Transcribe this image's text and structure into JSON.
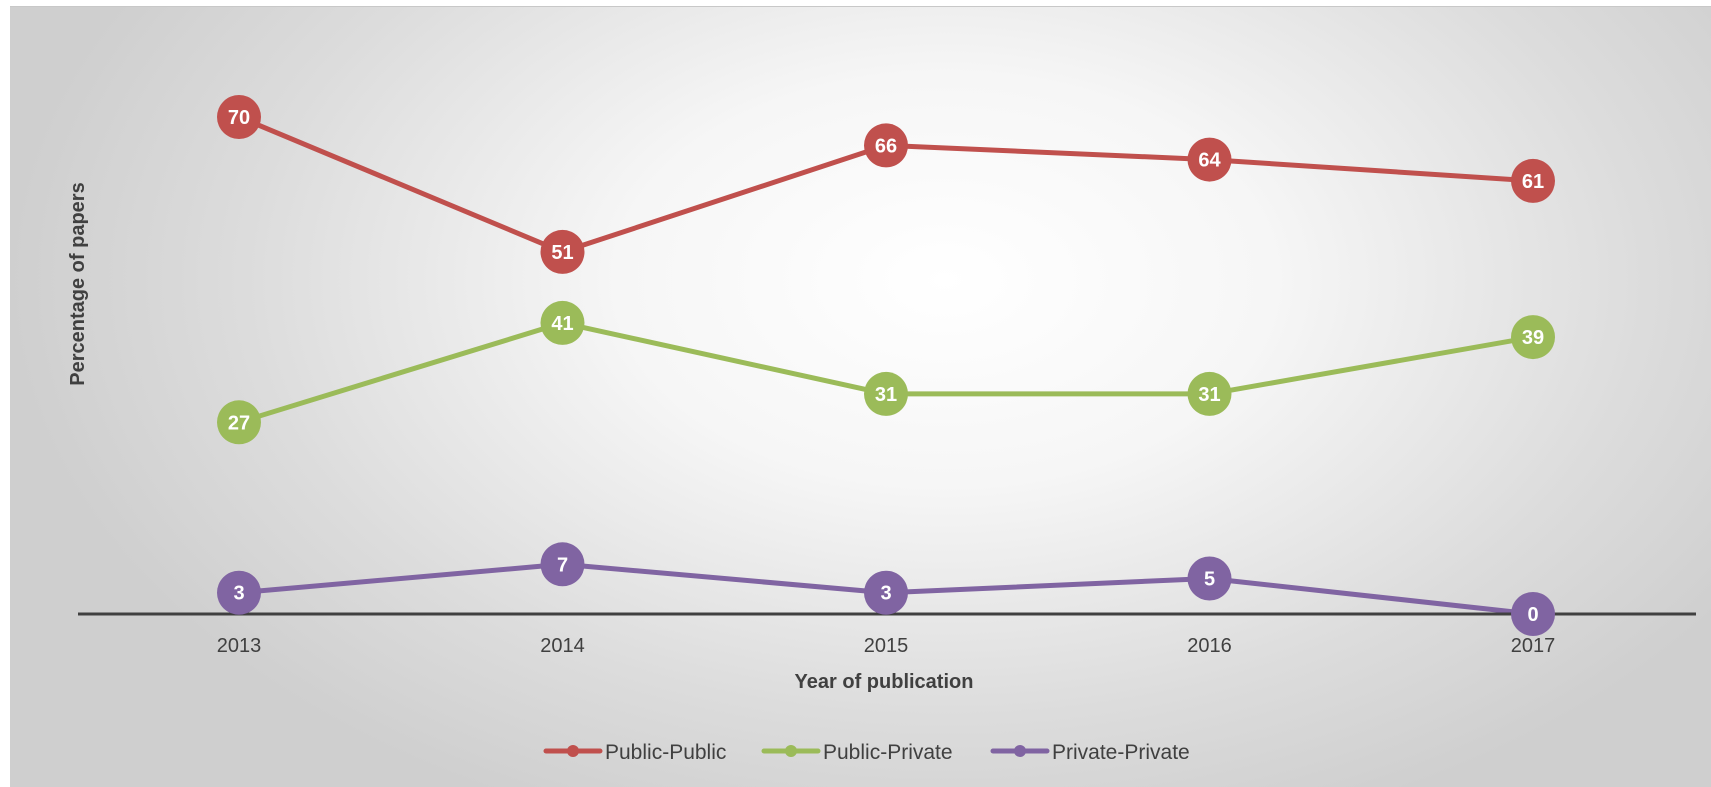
{
  "chart_data": {
    "type": "line",
    "xlabel": "Year of publication",
    "ylabel": "Percentage of  papers",
    "categories": [
      "2013",
      "2014",
      "2015",
      "2016",
      "2017"
    ],
    "series": [
      {
        "name": "Public-Public",
        "color": "#c0504d",
        "values": [
          70,
          51,
          66,
          64,
          61
        ]
      },
      {
        "name": "Public-Private",
        "color": "#9bbb59",
        "values": [
          27,
          41,
          31,
          31,
          39
        ]
      },
      {
        "name": "Private-Private",
        "color": "#8064a2",
        "values": [
          3,
          7,
          3,
          5,
          0
        ]
      }
    ],
    "ylim": [
      0,
      80
    ],
    "grid": false,
    "legend": "bottom-center",
    "data_labels": true
  }
}
